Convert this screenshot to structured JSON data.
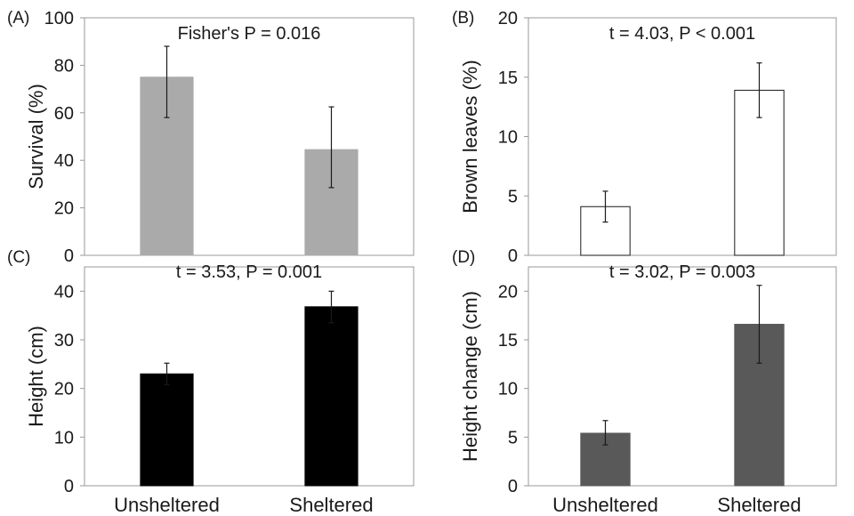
{
  "chart_data": [
    {
      "id": "A",
      "type": "bar",
      "panel_label": "(A)",
      "annotation": "Fisher's P = 0.016",
      "categories": [
        "Unshelterd",
        "Sheltered"
      ],
      "values": [
        75,
        44.5
      ],
      "errors": [
        [
          58,
          88
        ],
        [
          28.5,
          62.5
        ]
      ],
      "ylabel": "Survival (%)",
      "ylim": [
        0,
        100
      ],
      "yticks": [
        0,
        20,
        40,
        60,
        80,
        100
      ],
      "bar_color": "#aaaaaa",
      "bar_stroke": "#aaaaaa",
      "show_xticklabels": false
    },
    {
      "id": "B",
      "type": "bar",
      "panel_label": "(B)",
      "annotation": "t = 4.03, P < 0.001",
      "categories": [
        "Unsheltered",
        "Sheltered"
      ],
      "values": [
        4.1,
        13.9
      ],
      "errors": [
        [
          2.8,
          5.4
        ],
        [
          11.6,
          16.2
        ]
      ],
      "ylabel": "Brown leaves (%)",
      "ylim": [
        0,
        20
      ],
      "yticks": [
        0,
        5,
        10,
        15,
        20
      ],
      "bar_color": "#ffffff",
      "bar_stroke": "#1a1a1a",
      "show_xticklabels": false
    },
    {
      "id": "C",
      "type": "bar",
      "panel_label": "(C)",
      "annotation": "t = 3.53, P = 0.001",
      "categories": [
        "Unsheltered",
        "Sheltered"
      ],
      "values": [
        23,
        36.8
      ],
      "errors": [
        [
          20.8,
          25.2
        ],
        [
          33.5,
          40
        ]
      ],
      "ylabel": "Height (cm)",
      "ylim": [
        0,
        45
      ],
      "yticks": [
        0,
        10,
        20,
        30,
        40
      ],
      "bar_color": "#000000",
      "bar_stroke": "#000000",
      "show_xticklabels": true
    },
    {
      "id": "D",
      "type": "bar",
      "panel_label": "(D)",
      "annotation": "t = 3.02, P = 0.003",
      "categories": [
        "Unsheltered",
        "Sheltered"
      ],
      "values": [
        5.4,
        16.6
      ],
      "errors": [
        [
          4.2,
          6.7
        ],
        [
          12.6,
          20.6
        ]
      ],
      "ylabel": "Height change (cm)",
      "ylim": [
        0,
        22.5
      ],
      "yticks": [
        0,
        5,
        10,
        15,
        20
      ],
      "bar_color": "#595959",
      "bar_stroke": "#595959",
      "show_xticklabels": true
    }
  ]
}
